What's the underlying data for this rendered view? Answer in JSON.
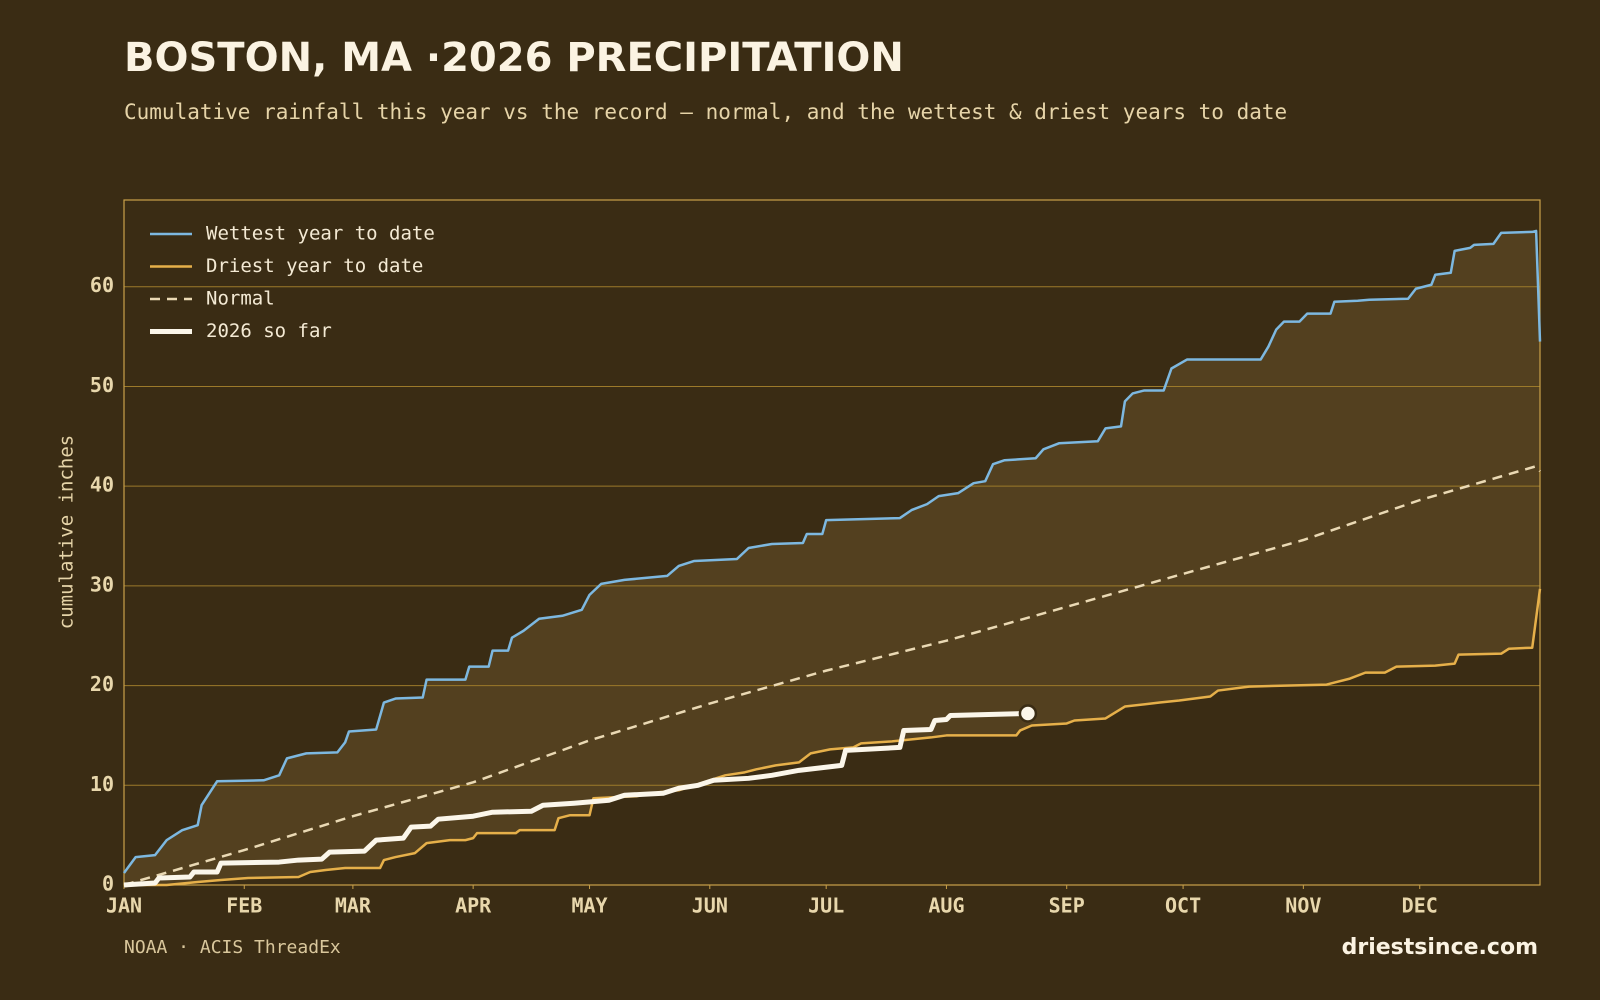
{
  "chart_data": {
    "type": "line",
    "title": "BOSTON, MA ·2026 PRECIPITATION",
    "subtitle": "Cumulative rainfall this year vs the record — normal, and the wettest & driest years to date",
    "y_label": "cumulative inches",
    "source": "NOAA · ACIS ThreadEx",
    "credit": "driestsince.com",
    "xlim": [
      0,
      365
    ],
    "ylim": [
      0,
      68.7
    ],
    "xticks": [
      {
        "value": 0,
        "label": "JAN"
      },
      {
        "value": 31,
        "label": "FEB"
      },
      {
        "value": 59,
        "label": "MAR"
      },
      {
        "value": 90,
        "label": "APR"
      },
      {
        "value": 120,
        "label": "MAY"
      },
      {
        "value": 151,
        "label": "JUN"
      },
      {
        "value": 181,
        "label": "JUL"
      },
      {
        "value": 212,
        "label": "AUG"
      },
      {
        "value": 243,
        "label": "SEP"
      },
      {
        "value": 273,
        "label": "OCT"
      },
      {
        "value": 304,
        "label": "NOV"
      },
      {
        "value": 334,
        "label": "DEC"
      }
    ],
    "yticks": [
      0,
      10,
      20,
      30,
      40,
      50,
      60
    ],
    "grid": true,
    "legend": "upper-left",
    "band_color": "#53401f",
    "series": [
      {
        "name": "Wettest year to date",
        "color": "#7db8e0",
        "dashed": false,
        "line_width": 2.5,
        "x": [
          0,
          3,
          8,
          11,
          15,
          19,
          20,
          24,
          36,
          40,
          42,
          47,
          55,
          57,
          58,
          65,
          67,
          70,
          77,
          78,
          88,
          89,
          94,
          95,
          99,
          100,
          103,
          107,
          113,
          118,
          120,
          123,
          129,
          140,
          143,
          147,
          158,
          161,
          167,
          175,
          176,
          180,
          181,
          200,
          203,
          207,
          210,
          215,
          219,
          222,
          224,
          227,
          235,
          237,
          241,
          251,
          253,
          257,
          258,
          260,
          263,
          268,
          270,
          274,
          293,
          295,
          297,
          299,
          303,
          305,
          311,
          312,
          318,
          321,
          331,
          333,
          337,
          338,
          342,
          343,
          347,
          348,
          353,
          355,
          363,
          364,
          365
        ],
        "values": [
          1.2,
          2.8,
          3,
          4.5,
          5.5,
          6,
          8,
          10.4,
          10.5,
          11,
          12.7,
          13.2,
          13.3,
          14.3,
          15.4,
          15.6,
          18.3,
          18.7,
          18.8,
          20.6,
          20.6,
          21.9,
          21.9,
          23.5,
          23.5,
          24.8,
          25.5,
          26.7,
          27,
          27.6,
          29.1,
          30.2,
          30.6,
          31,
          32,
          32.5,
          32.7,
          33.8,
          34.2,
          34.3,
          35.2,
          35.2,
          36.6,
          36.8,
          37.6,
          38.2,
          39,
          39.3,
          40.3,
          40.5,
          42.2,
          42.6,
          42.8,
          43.7,
          44.3,
          44.5,
          45.8,
          46,
          48.5,
          49.3,
          49.6,
          49.6,
          51.8,
          52.7,
          52.7,
          54,
          55.7,
          56.5,
          56.5,
          57.3,
          57.3,
          58.5,
          58.6,
          58.7,
          58.8,
          59.8,
          60.2,
          61.2,
          61.4,
          63.6,
          63.9,
          64.2,
          64.3,
          65.4,
          65.5,
          65.6,
          54.5
        ]
      },
      {
        "name": "Driest year to date",
        "color": "#e6b04a",
        "dashed": false,
        "line_width": 2.5,
        "x": [
          0,
          11,
          19,
          25,
          32,
          45,
          48,
          52,
          57,
          66,
          67,
          70,
          75,
          78,
          84,
          88,
          90,
          91,
          101,
          102,
          111,
          112,
          115,
          120,
          121,
          132,
          138,
          143,
          147,
          151,
          155,
          160,
          163,
          168,
          174,
          177,
          182,
          188,
          190,
          198,
          208,
          212,
          230,
          231,
          234,
          243,
          245,
          253,
          258,
          267,
          272,
          280,
          282,
          290,
          310,
          312,
          316,
          320,
          325,
          328,
          338,
          343,
          344,
          355,
          357,
          363,
          365
        ],
        "values": [
          0,
          0,
          0.3,
          0.5,
          0.7,
          0.8,
          1.3,
          1.5,
          1.7,
          1.7,
          2.5,
          2.8,
          3.2,
          4.2,
          4.5,
          4.5,
          4.7,
          5.2,
          5.2,
          5.5,
          5.5,
          6.7,
          7,
          7,
          8.7,
          8.9,
          9.3,
          9.5,
          10,
          10.5,
          11,
          11.3,
          11.6,
          12,
          12.3,
          13.2,
          13.6,
          13.8,
          14.2,
          14.4,
          14.8,
          15,
          15,
          15.5,
          16,
          16.2,
          16.5,
          16.7,
          17.9,
          18.3,
          18.5,
          18.9,
          19.5,
          19.9,
          20.1,
          20.3,
          20.7,
          21.3,
          21.3,
          21.9,
          22,
          22.2,
          23.1,
          23.2,
          23.7,
          23.8,
          29.7
        ]
      },
      {
        "name": "Normal",
        "color": "#ead9b4",
        "dashed": true,
        "line_width": 2.5,
        "x": [
          0,
          31,
          59,
          90,
          120,
          151,
          181,
          212,
          243,
          273,
          304,
          334,
          364,
          365
        ],
        "values": [
          0,
          3.5,
          6.9,
          10.3,
          14.5,
          18.2,
          21.5,
          24.5,
          27.9,
          31.2,
          34.6,
          38.6,
          42,
          41.5
        ]
      },
      {
        "name": "2026 so far",
        "color": "#fbf6ea",
        "dashed": false,
        "line_width": 5,
        "end_marker": true,
        "x": [
          0,
          8,
          9,
          17,
          18,
          24,
          25,
          40,
          45,
          51,
          53,
          62,
          65,
          72,
          74,
          79,
          81,
          90,
          95,
          105,
          108,
          116,
          125,
          129,
          139,
          143,
          148,
          152,
          161,
          167,
          174,
          185,
          186,
          200,
          201,
          208,
          209,
          212,
          213,
          233
        ],
        "values": [
          0,
          0.2,
          0.7,
          0.8,
          1.3,
          1.3,
          2.2,
          2.3,
          2.5,
          2.6,
          3.3,
          3.4,
          4.5,
          4.7,
          5.8,
          5.9,
          6.6,
          6.9,
          7.3,
          7.4,
          8,
          8.2,
          8.5,
          9,
          9.2,
          9.7,
          10,
          10.5,
          10.7,
          11,
          11.5,
          12,
          13.5,
          13.8,
          15.5,
          15.6,
          16.5,
          16.6,
          17,
          17.2
        ]
      }
    ]
  }
}
